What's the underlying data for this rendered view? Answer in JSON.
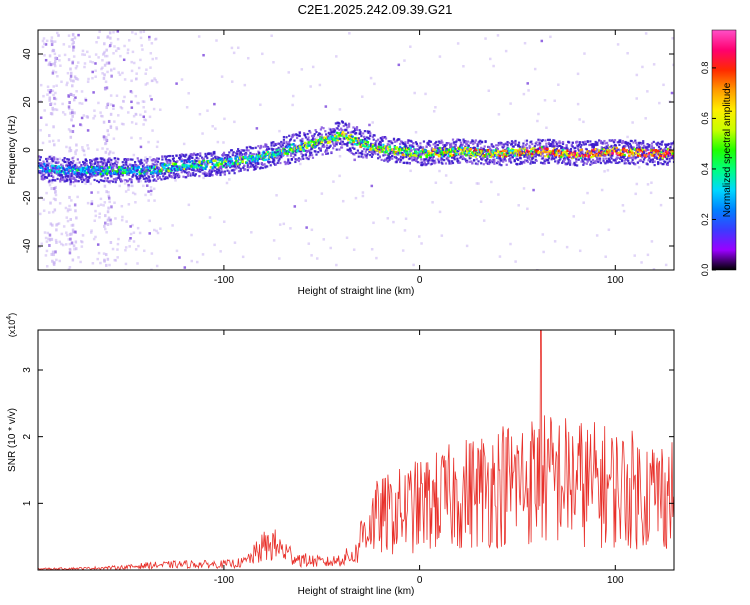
{
  "title": "C2E1.2025.242.09.39.G21",
  "colors": {
    "axis": "#000000",
    "snr_line": "#e8302a",
    "dot_outer": "#c9b3f2",
    "dot_mid": "#8a5ae0",
    "dot_dark": "#3a1acc",
    "colorbar_stops": [
      "#000000",
      "#9a00ff",
      "#3b3bff",
      "#0080ff",
      "#00d8ff",
      "#00ff80",
      "#20ff00",
      "#c8ff00",
      "#ffee00",
      "#ff9a00",
      "#ff2a00",
      "#ff0070",
      "#ff50c8"
    ]
  },
  "chart_data": [
    {
      "type": "heatmap",
      "name": "spectrogram",
      "xlabel": "Height of straight line (km)",
      "ylabel": "Frequency (Hz)",
      "xlim": [
        -195,
        130
      ],
      "ylim": [
        -50,
        50
      ],
      "x_ticks": [
        -100,
        0,
        100
      ],
      "x_tick_labels": [
        "-100",
        "0",
        "100"
      ],
      "y_ticks": [
        -40,
        -20,
        0,
        20,
        40
      ],
      "y_tick_labels": [
        "-40",
        "-20",
        "0",
        "20",
        "40"
      ],
      "ridge": {
        "x": [
          -195,
          -180,
          -160,
          -140,
          -120,
          -100,
          -80,
          -70,
          -60,
          -50,
          -45,
          -40,
          -35,
          -30,
          -20,
          -10,
          0,
          20,
          40,
          60,
          80,
          100,
          120,
          130
        ],
        "frequency": [
          -7,
          -8,
          -8,
          -8,
          -6,
          -5,
          -2,
          0,
          2,
          4,
          5,
          7,
          5,
          3,
          1,
          0,
          -1,
          0,
          -1,
          0,
          -1,
          0,
          -1,
          -1
        ]
      },
      "colorbar": {
        "label": "Normalized spectral amplitude",
        "range": [
          0.0,
          0.95
        ],
        "ticks": [
          0.0,
          0.2,
          0.4,
          0.6,
          0.8
        ],
        "tick_labels": [
          "0.0",
          "0.2",
          "0.4",
          "0.6",
          "0.8"
        ]
      }
    },
    {
      "type": "line",
      "name": "snr",
      "xlabel": "Height of straight line (km)",
      "ylabel": "SNR (10 * v/v)",
      "scale_label_prefix": "(x10",
      "scale_label_exp": "4",
      "scale_label_suffix": ")",
      "xlim": [
        -195,
        130
      ],
      "ylim": [
        0,
        3.6
      ],
      "x_ticks": [
        -100,
        0,
        100
      ],
      "x_tick_labels": [
        "-100",
        "0",
        "100"
      ],
      "y_ticks": [
        1,
        2,
        3
      ],
      "y_tick_labels": [
        "1",
        "2",
        "3"
      ],
      "envelope": {
        "x": [
          -195,
          -170,
          -150,
          -140,
          -120,
          -100,
          -90,
          -85,
          -80,
          -75,
          -70,
          -65,
          -60,
          -50,
          -45,
          -40,
          -35,
          -32,
          -30,
          -28,
          -25,
          -20,
          -15,
          -10,
          -5,
          0,
          10,
          20,
          30,
          40,
          50,
          60,
          70,
          80,
          90,
          100,
          110,
          120,
          130
        ],
        "values": [
          0.02,
          0.03,
          0.05,
          0.08,
          0.1,
          0.1,
          0.13,
          0.25,
          0.4,
          0.45,
          0.35,
          0.25,
          0.18,
          0.14,
          0.14,
          0.2,
          0.25,
          0.3,
          0.6,
          0.8,
          0.9,
          1.0,
          1.05,
          1.1,
          1.15,
          1.2,
          1.3,
          1.4,
          1.5,
          1.6,
          1.65,
          1.7,
          1.7,
          1.65,
          1.6,
          1.55,
          1.5,
          1.45,
          1.45
        ]
      },
      "peak": {
        "x": 62,
        "value": 3.6
      }
    }
  ]
}
